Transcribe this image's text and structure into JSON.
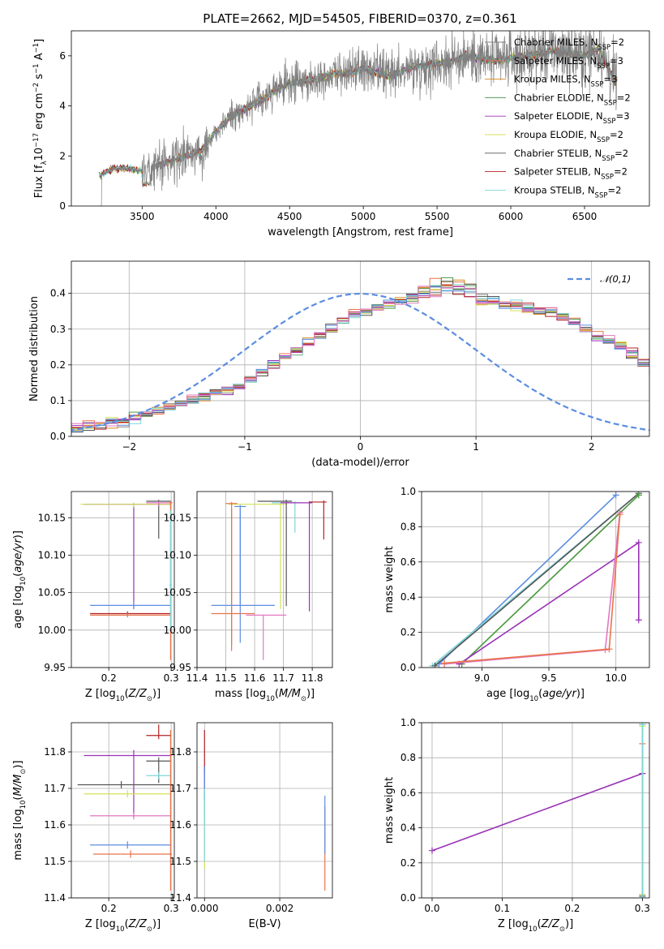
{
  "figure": {
    "title": "PLATE=2662, MJD=54505, FIBERID=0370, z=0.361"
  },
  "chart_data": [
    {
      "id": "spectrum",
      "type": "line",
      "xlabel": "wavelength [Angstrom, rest frame]",
      "ylabel": "Flux [f_λ 10^-17 erg cm^-2 s^-1 A^-1]",
      "xlim": [
        3020,
        6940
      ],
      "ylim": [
        0,
        7
      ],
      "xticks": [
        3500,
        4000,
        4500,
        5000,
        5500,
        6000,
        6500
      ],
      "yticks": [
        0,
        2,
        4,
        6
      ],
      "grid": false,
      "legend_position": "top-right",
      "data_start": 3210,
      "data_end": 6720,
      "observed_envelope": {
        "x": [
          3210,
          3300,
          3400,
          3500,
          3600,
          3700,
          3800,
          3900,
          4000,
          4100,
          4200,
          4300,
          4400,
          4500,
          4600,
          4700,
          4800,
          4900,
          5000,
          5100,
          5200,
          5300,
          5400,
          5500,
          5600,
          5700,
          5800,
          5900,
          6000,
          6100,
          6200,
          6300,
          6400,
          6500,
          6600,
          6700
        ],
        "y": [
          1.2,
          1.5,
          1.5,
          1.4,
          1.6,
          1.8,
          2.0,
          2.2,
          3.0,
          3.6,
          3.9,
          4.2,
          4.6,
          4.9,
          5.0,
          5.1,
          5.3,
          5.3,
          5.5,
          5.3,
          5.2,
          5.5,
          5.6,
          5.7,
          5.8,
          6.0,
          5.9,
          5.8,
          5.9,
          6.0,
          6.1,
          6.2,
          6.1,
          6.0,
          6.3,
          5.0
        ]
      },
      "series": [
        {
          "name": "Chabrier MILES, N_SSP=2",
          "color": "#808080"
        },
        {
          "name": "Salpeter MILES, N_SSP=3",
          "color": "#e8734a"
        },
        {
          "name": "Kroupa MILES, N_SSP=3",
          "color": "#d58a1f"
        },
        {
          "name": "Chabrier ELODIE, N_SSP=2",
          "color": "#4a9a4a"
        },
        {
          "name": "Salpeter ELODIE, N_SSP=3",
          "color": "#9932b5"
        },
        {
          "name": "Kroupa ELODIE, N_SSP=2",
          "color": "#d4e157"
        },
        {
          "name": "Chabrier STELIB, N_SSP=2",
          "color": "#555555"
        },
        {
          "name": "Salpeter STELIB, N_SSP=2",
          "color": "#b22222"
        },
        {
          "name": "Kroupa STELIB, N_SSP=2",
          "color": "#7fd6d9"
        }
      ]
    },
    {
      "id": "residuals",
      "type": "line",
      "xlabel": "(data-model)/error",
      "ylabel": "Normed distribution",
      "xlim": [
        -2.5,
        2.5
      ],
      "ylim": [
        0,
        0.49
      ],
      "xticks": [
        -2,
        -1,
        0,
        1,
        2
      ],
      "yticks": [
        0.0,
        0.1,
        0.2,
        0.3,
        0.4
      ],
      "grid": true,
      "legend_position": "top-right",
      "reference": {
        "name": "𝒩(0,1)",
        "color": "#5b8de0"
      },
      "bin_width": 0.1,
      "profile": [
        0.02,
        0.02,
        0.03,
        0.03,
        0.04,
        0.04,
        0.05,
        0.06,
        0.07,
        0.08,
        0.09,
        0.1,
        0.11,
        0.12,
        0.13,
        0.14,
        0.16,
        0.18,
        0.2,
        0.22,
        0.24,
        0.26,
        0.28,
        0.3,
        0.32,
        0.34,
        0.35,
        0.36,
        0.37,
        0.38,
        0.39,
        0.39,
        0.4,
        0.41,
        0.4,
        0.39,
        0.38,
        0.38,
        0.37,
        0.37,
        0.36,
        0.35,
        0.35,
        0.33,
        0.32,
        0.3,
        0.28,
        0.27,
        0.25,
        0.23,
        0.21,
        0.19,
        0.18,
        0.17,
        0.16,
        0.14,
        0.13,
        0.12,
        0.11,
        0.1,
        0.09,
        0.08,
        0.07,
        0.06,
        0.06,
        0.05,
        0.05,
        0.04,
        0.04,
        0.03,
        0.03,
        0.03
      ],
      "series_colors": [
        "#808080",
        "#e8734a",
        "#d58a1f",
        "#4a9a4a",
        "#9932b5",
        "#d4e157",
        "#555555",
        "#b22222",
        "#7fd6d9",
        "#5b8de0",
        "#e377c2"
      ]
    },
    {
      "id": "age_vs_Z",
      "type": "scatter",
      "xlabel": "Z [log10(Z/Z⊙)]",
      "ylabel": "age  [log10(age/yr)]",
      "xlim": [
        0.14,
        0.305
      ],
      "ylim": [
        9.95,
        10.185
      ],
      "xticks": [
        0.2,
        0.3
      ],
      "yticks": [
        9.95,
        10.0,
        10.05,
        10.1,
        10.15
      ],
      "grid": true,
      "points": [
        {
          "x": 0.24,
          "y": 10.168,
          "xerr": [
            0.08,
            0.06
          ],
          "yerr": [
            0.14,
            0.002
          ],
          "color": "#9932b5"
        },
        {
          "x": 0.24,
          "y": 10.168,
          "xerr": [
            0.085,
            0.06
          ],
          "yerr": [
            0.004,
            0.002
          ],
          "color": "#d4e157"
        },
        {
          "x": 0.28,
          "y": 10.172,
          "xerr": [
            0.02,
            0.02
          ],
          "yerr": [
            0.05,
            0.002
          ],
          "color": "#555555"
        },
        {
          "x": 0.28,
          "y": 10.17,
          "xerr": [
            0.02,
            0.02
          ],
          "yerr": [
            0.004,
            0.002
          ],
          "color": "#e377c2"
        },
        {
          "x": 0.299,
          "y": 10.17,
          "xerr": [
            0.002,
            0.003
          ],
          "yerr": [
            0.21,
            0.002
          ],
          "color": "#e8734a"
        },
        {
          "x": 0.24,
          "y": 10.033,
          "xerr": [
            0.07,
            0.06
          ],
          "yerr": [
            0.005,
            0.005
          ],
          "color": "#5b8de0"
        },
        {
          "x": 0.23,
          "y": 10.022,
          "xerr": [
            0.06,
            0.07
          ],
          "yerr": [
            0.003,
            0.003
          ],
          "color": "#b22222"
        },
        {
          "x": 0.23,
          "y": 10.02,
          "xerr": [
            0.06,
            0.07
          ],
          "yerr": [
            0.003,
            0.003
          ],
          "color": "#e8734a"
        },
        {
          "x": 0.299,
          "y": 10.06,
          "xerr": [
            0.002,
            0.002
          ],
          "yerr": [
            0.06,
            0.1
          ],
          "color": "#7fd6d9"
        }
      ]
    },
    {
      "id": "age_vs_mass",
      "type": "scatter",
      "xlabel": "mass [log10(M/M⊙)]",
      "ylabel": "",
      "xlim": [
        11.4,
        11.87
      ],
      "ylim": [
        9.95,
        10.185
      ],
      "xticks": [
        11.4,
        11.5,
        11.6,
        11.7,
        11.8
      ],
      "yticks": [
        9.95,
        10.0,
        10.05,
        10.1,
        10.15
      ],
      "grid": true,
      "points": [
        {
          "x": 11.55,
          "y": 10.033,
          "xerr": [
            0.1,
            0.12
          ],
          "yerr": [
            0.05,
            0.13
          ],
          "color": "#5b8de0"
        },
        {
          "x": 11.52,
          "y": 10.022,
          "xerr": [
            0.07,
            0.08
          ],
          "yerr": [
            0.05,
            0.14
          ],
          "color": "#e8734a"
        },
        {
          "x": 11.63,
          "y": 10.02,
          "xerr": [
            0.06,
            0.08
          ],
          "yerr": [
            0.06,
            0.0
          ],
          "color": "#e377c2"
        },
        {
          "x": 11.69,
          "y": 10.168,
          "xerr": [
            0.18,
            0.02
          ],
          "yerr": [
            0.14,
            0.002
          ],
          "color": "#d4e157"
        },
        {
          "x": 11.71,
          "y": 10.172,
          "xerr": [
            0.1,
            0.02
          ],
          "yerr": [
            0.14,
            0.002
          ],
          "color": "#555555"
        },
        {
          "x": 11.74,
          "y": 10.17,
          "xerr": [
            0.08,
            0.01
          ],
          "yerr": [
            0.04,
            0.002
          ],
          "color": "#7fd6d9"
        },
        {
          "x": 11.79,
          "y": 10.17,
          "xerr": [
            0.1,
            0.01
          ],
          "yerr": [
            0.145,
            0.002
          ],
          "color": "#9932b5"
        },
        {
          "x": 11.84,
          "y": 10.171,
          "xerr": [
            0.05,
            0.01
          ],
          "yerr": [
            0.05,
            0.002
          ],
          "color": "#b22222"
        },
        {
          "x": 11.52,
          "y": 10.169,
          "xerr": [
            0.02,
            0.02
          ],
          "yerr": [
            0.19,
            0.002
          ],
          "color": "#e8734a"
        },
        {
          "x": 11.55,
          "y": 10.165,
          "xerr": [
            0.02,
            0.02
          ],
          "yerr": [
            0.13,
            0.002
          ],
          "color": "#5b8de0"
        }
      ]
    },
    {
      "id": "massweight_vs_age",
      "type": "line",
      "xlabel": "age  [log10(age/yr)]",
      "ylabel": "mass weight",
      "xlim": [
        8.55,
        10.25
      ],
      "ylim": [
        0.0,
        1.0
      ],
      "xticks": [
        9.0,
        9.5,
        10.0
      ],
      "yticks": [
        0.0,
        0.2,
        0.4,
        0.6,
        0.8,
        1.0
      ],
      "grid": true,
      "series": [
        {
          "color": "#5b8de0",
          "x": [
            8.68,
            10.0
          ],
          "y": [
            0.02,
            0.98
          ]
        },
        {
          "color": "#7fd6d9",
          "x": [
            8.63,
            10.17
          ],
          "y": [
            0.01,
            0.99
          ]
        },
        {
          "color": "#555555",
          "x": [
            8.65,
            10.17
          ],
          "y": [
            0.01,
            0.99
          ]
        },
        {
          "color": "#d4e157",
          "x": [
            8.85,
            10.17
          ],
          "y": [
            0.02,
            0.98
          ]
        },
        {
          "color": "#4a9a4a",
          "x": [
            8.85,
            10.17
          ],
          "y": [
            0.02,
            0.98
          ]
        },
        {
          "color": "#9932b5",
          "x": [
            8.83,
            10.17,
            10.17
          ],
          "y": [
            0.02,
            0.71,
            0.27
          ]
        },
        {
          "color": "#e377c2",
          "x": [
            8.72,
            9.92,
            10.03
          ],
          "y": [
            0.02,
            0.1,
            0.88
          ]
        },
        {
          "color": "#e8734a",
          "x": [
            8.72,
            9.95,
            10.03
          ],
          "y": [
            0.025,
            0.105,
            0.87
          ]
        }
      ]
    },
    {
      "id": "mass_vs_Z",
      "type": "scatter",
      "xlabel": "Z [log10(Z/Z⊙)]",
      "ylabel": "mass [log10(M/M⊙)]",
      "xlim": [
        0.14,
        0.305
      ],
      "ylim": [
        11.4,
        11.88
      ],
      "xticks": [
        0.2,
        0.3
      ],
      "yticks": [
        11.4,
        11.5,
        11.6,
        11.7,
        11.8
      ],
      "grid": true,
      "points": [
        {
          "x": 0.28,
          "y": 11.845,
          "xerr": [
            0.02,
            0.02
          ],
          "yerr": [
            0.01,
            0.03
          ],
          "color": "#b22222"
        },
        {
          "x": 0.24,
          "y": 11.79,
          "xerr": [
            0.08,
            0.06
          ],
          "yerr": [
            0.17,
            0.015
          ],
          "color": "#9932b5"
        },
        {
          "x": 0.28,
          "y": 11.775,
          "xerr": [
            0.02,
            0.02
          ],
          "yerr": [
            0.06,
            0.01
          ],
          "color": "#555555"
        },
        {
          "x": 0.28,
          "y": 11.735,
          "xerr": [
            0.02,
            0.02
          ],
          "yerr": [
            0.01,
            0.01
          ],
          "color": "#7fd6d9"
        },
        {
          "x": 0.22,
          "y": 11.71,
          "xerr": [
            0.07,
            0.08
          ],
          "yerr": [
            0.01,
            0.01
          ],
          "color": "#555555"
        },
        {
          "x": 0.23,
          "y": 11.685,
          "xerr": [
            0.07,
            0.07
          ],
          "yerr": [
            0.01,
            0.01
          ],
          "color": "#d4e157"
        },
        {
          "x": 0.24,
          "y": 11.625,
          "xerr": [
            0.07,
            0.06
          ],
          "yerr": [
            0.01,
            0.01
          ],
          "color": "#e377c2"
        },
        {
          "x": 0.23,
          "y": 11.545,
          "xerr": [
            0.06,
            0.07
          ],
          "yerr": [
            0.01,
            0.01
          ],
          "color": "#5b8de0"
        },
        {
          "x": 0.235,
          "y": 11.52,
          "xerr": [
            0.06,
            0.065
          ],
          "yerr": [
            0.01,
            0.01
          ],
          "color": "#e8734a"
        },
        {
          "x": 0.299,
          "y": 11.52,
          "xerr": [
            0.002,
            0.002
          ],
          "yerr": [
            0.1,
            0.34
          ],
          "color": "#e8734a"
        }
      ]
    },
    {
      "id": "mass_vs_ebv",
      "type": "scatter",
      "xlabel": "E(B-V)",
      "ylabel": "",
      "xlim": [
        -0.0002,
        0.0034
      ],
      "ylim": [
        11.4,
        11.88
      ],
      "xticks": [
        0.0,
        0.002
      ],
      "xtick_labels": [
        "0.000",
        "0.002"
      ],
      "yticks": [
        11.4,
        11.5,
        11.6,
        11.7,
        11.8
      ],
      "grid": true,
      "points": [
        {
          "x": 0.0,
          "y": 11.8,
          "xerr": [
            0,
            0
          ],
          "yerr": [
            0.06,
            0.06
          ],
          "color": "#b22222"
        },
        {
          "x": 0.0,
          "y": 11.7,
          "xerr": [
            0,
            0
          ],
          "yerr": [
            0.06,
            0.06
          ],
          "color": "#9932b5"
        },
        {
          "x": 0.0,
          "y": 11.68,
          "xerr": [
            0,
            0
          ],
          "yerr": [
            0.08,
            0.08
          ],
          "color": "#5b8de0"
        },
        {
          "x": 0.0,
          "y": 11.62,
          "xerr": [
            0,
            0
          ],
          "yerr": [
            0.14,
            0.05
          ],
          "color": "#d4e157"
        },
        {
          "x": 0.0,
          "y": 11.6,
          "xerr": [
            0,
            0
          ],
          "yerr": [
            0.1,
            0.1
          ],
          "color": "#7fd6d9"
        },
        {
          "x": 0.0032,
          "y": 11.55,
          "xerr": [
            0,
            0
          ],
          "yerr": [
            0.13,
            0.1
          ],
          "color": "#e8734a"
        },
        {
          "x": 0.0032,
          "y": 11.6,
          "xerr": [
            0,
            0
          ],
          "yerr": [
            0.08,
            0.08
          ],
          "color": "#5b8de0"
        }
      ]
    },
    {
      "id": "massweight_vs_Z",
      "type": "line",
      "xlabel": "Z [log10(Z/Z⊙)]",
      "ylabel": "mass weight",
      "xlim": [
        -0.015,
        0.31
      ],
      "ylim": [
        0.0,
        1.0
      ],
      "xticks": [
        0.0,
        0.1,
        0.2,
        0.3
      ],
      "yticks": [
        0.0,
        0.2,
        0.4,
        0.6,
        0.8,
        1.0
      ],
      "grid": true,
      "series": [
        {
          "color": "#9932b5",
          "x": [
            0.0,
            0.3
          ],
          "y": [
            0.27,
            0.71
          ]
        },
        {
          "color": "#e8734a",
          "x": [
            0.3,
            0.3
          ],
          "y": [
            0.02,
            0.88
          ]
        },
        {
          "color": "#555555",
          "x": [
            0.3,
            0.3
          ],
          "y": [
            0.01,
            0.99
          ]
        },
        {
          "color": "#d4e157",
          "x": [
            0.3,
            0.3
          ],
          "y": [
            0.02,
            0.98
          ]
        },
        {
          "color": "#7fd6d9",
          "x": [
            0.3,
            0.3
          ],
          "y": [
            0.0,
            0.99
          ]
        }
      ]
    }
  ]
}
